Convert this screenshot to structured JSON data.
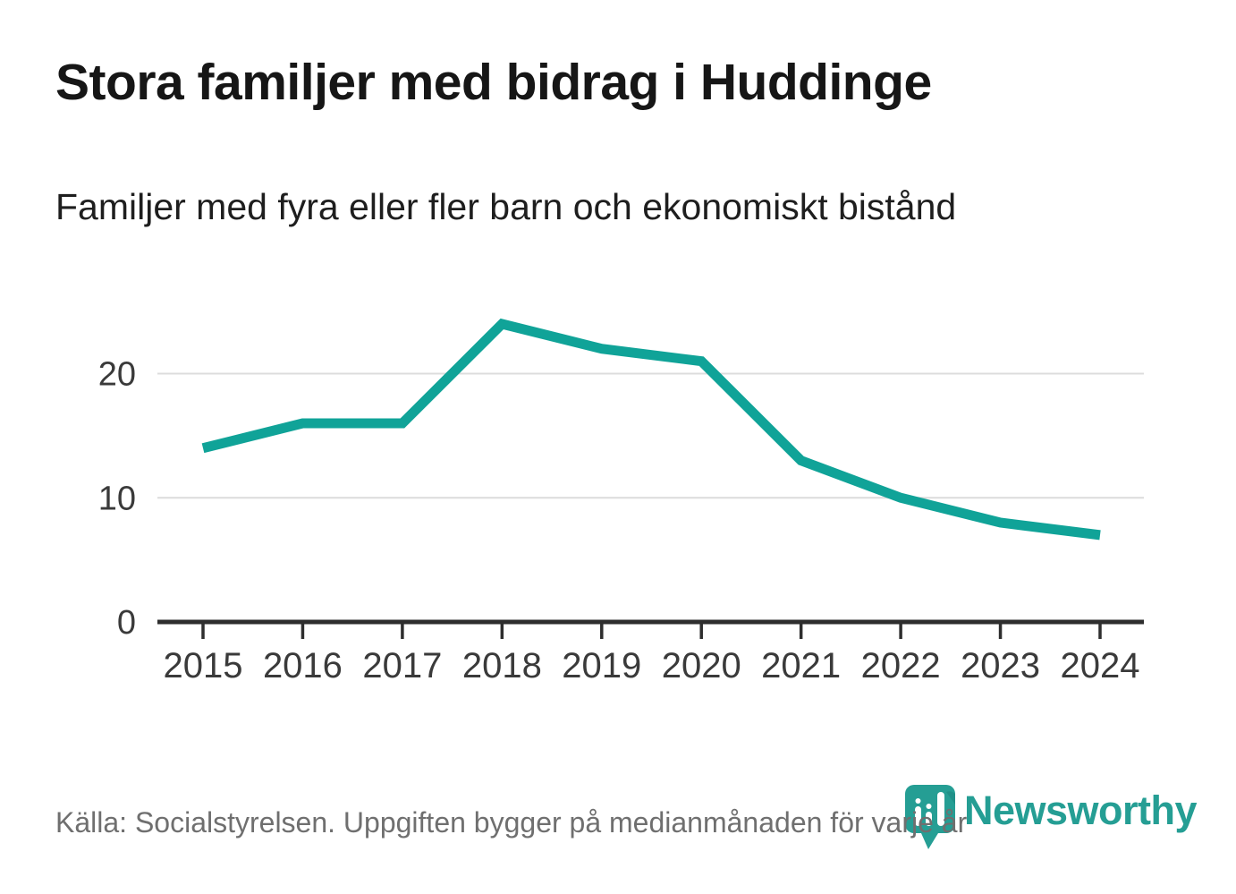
{
  "header": {
    "title": "Stora familjer med bidrag i Huddinge",
    "subtitle": "Familjer med fyra eller fler barn och ekonomiskt bistånd"
  },
  "chart_data": {
    "type": "line",
    "title": "Stora familjer med bidrag i Huddinge",
    "subtitle": "Familjer med fyra eller fler barn och ekonomiskt bistånd",
    "categories": [
      "2015",
      "2016",
      "2017",
      "2018",
      "2019",
      "2020",
      "2021",
      "2022",
      "2023",
      "2024"
    ],
    "series": [
      {
        "name": "Familjer med fyra eller fler barn och ekonomiskt bistånd",
        "values": [
          14,
          16,
          16,
          24,
          22,
          21,
          13,
          10,
          8,
          7
        ]
      }
    ],
    "xlabel": "",
    "ylabel": "",
    "ylim": [
      0,
      26
    ],
    "yticks": [
      0,
      10,
      20
    ],
    "grid": "horizontal-only",
    "legend_position": "none",
    "line_color": "#10a398"
  },
  "footer": {
    "source": "Källa: Socialstyrelsen. Uppgiften bygger på medianmånaden för varje år",
    "logo_text": "Newsworthy"
  },
  "colors": {
    "accent": "#10a398",
    "logo_teal": "#259e94",
    "logo_teal_dark": "#1d857d",
    "grid": "#dcdcdc",
    "axis": "#2e2e2e",
    "tick_label": "#3a3a3a",
    "title_text": "#161616",
    "muted_text": "#6f6f6f"
  }
}
